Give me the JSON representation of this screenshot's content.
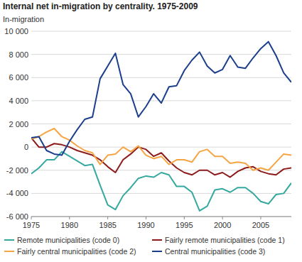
{
  "chart_data": {
    "type": "line",
    "title": "Internal net in-migration by centrality. 1975-2009",
    "y_label": "In-migration",
    "x": [
      1975,
      1976,
      1977,
      1978,
      1979,
      1980,
      1981,
      1982,
      1983,
      1984,
      1985,
      1986,
      1987,
      1988,
      1989,
      1990,
      1991,
      1992,
      1993,
      1994,
      1995,
      1996,
      1997,
      1998,
      1999,
      2000,
      2001,
      2002,
      2003,
      2004,
      2005,
      2006,
      2007,
      2008,
      2009
    ],
    "series": [
      {
        "name": "Remote municipalities (code 0)",
        "color": "#35a9a0",
        "values": [
          -2300,
          -1800,
          -1100,
          -1100,
          -400,
          -800,
          -1200,
          -1600,
          -1500,
          -3300,
          -5000,
          -5400,
          -4200,
          -3500,
          -2700,
          -2500,
          -2600,
          -2200,
          -2400,
          -3400,
          -3400,
          -3900,
          -5500,
          -5100,
          -3700,
          -3600,
          -3900,
          -3500,
          -3500,
          -4000,
          -4700,
          -4900,
          -4100,
          -4000,
          -3100
        ]
      },
      {
        "name": "Fairly remote municipalities (code 1)",
        "color": "#8e1b1b",
        "values": [
          800,
          0,
          0,
          300,
          200,
          0,
          -300,
          -500,
          -700,
          -1100,
          -1700,
          -2200,
          -1100,
          -600,
          0,
          -200,
          -800,
          -500,
          -1200,
          -1800,
          -2200,
          -2400,
          -2000,
          -2000,
          -2400,
          -2200,
          -2600,
          -2100,
          -1800,
          -1700,
          -2100,
          -2300,
          -2400,
          -1900,
          -1800
        ]
      },
      {
        "name": "Fairly central municipalities (code 2)",
        "color": "#f5a544",
        "values": [
          700,
          900,
          1300,
          1600,
          900,
          600,
          100,
          -300,
          -500,
          -1500,
          -700,
          -600,
          0,
          -400,
          100,
          -700,
          -1000,
          -800,
          -1500,
          -1100,
          -1100,
          -1300,
          -400,
          -200,
          -800,
          -800,
          -1400,
          -1300,
          -1400,
          -2000,
          -1800,
          -2000,
          -1300,
          -600,
          -700
        ]
      },
      {
        "name": "Central municipalities (code 3)",
        "color": "#1c3f8c",
        "values": [
          800,
          900,
          -300,
          -600,
          -700,
          500,
          1500,
          2400,
          2600,
          5900,
          7000,
          8100,
          5400,
          4600,
          2600,
          3500,
          4600,
          3800,
          5200,
          5300,
          6600,
          7500,
          8200,
          7000,
          6400,
          6700,
          7900,
          6900,
          6800,
          7700,
          8500,
          9100,
          7900,
          6400,
          5600
        ]
      }
    ],
    "xlim": [
      1975,
      2009
    ],
    "xticks": [
      1975,
      1980,
      1985,
      1990,
      1995,
      2000,
      2005
    ],
    "ylim": [
      -6000,
      10000
    ],
    "yticks": [
      {
        "value": -6000,
        "label": "-6 000"
      },
      {
        "value": -4000,
        "label": "-4 000"
      },
      {
        "value": -2000,
        "label": "-2 000"
      },
      0,
      {
        "value": 2000,
        "label": "2 000"
      },
      {
        "value": 4000,
        "label": "4 000"
      },
      {
        "value": 6000,
        "label": "6 000"
      },
      {
        "value": 8000,
        "label": "8 000"
      },
      {
        "value": 10000,
        "label": "10 000"
      }
    ],
    "grid": true,
    "legend": "bottom"
  }
}
